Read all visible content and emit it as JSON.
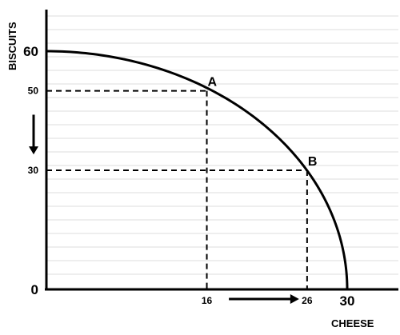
{
  "chart_data": {
    "type": "line",
    "xlabel": "CHEESE",
    "ylabel": "BISCUITS",
    "xlim": [
      0,
      30
    ],
    "ylim": [
      0,
      60
    ],
    "grid": true,
    "series": [
      {
        "x": [
          0,
          5,
          10,
          16,
          20,
          26,
          28,
          30
        ],
        "y": [
          60,
          58.8,
          55,
          50,
          43.6,
          30,
          21.5,
          0
        ]
      }
    ],
    "points": [
      {
        "label": "A",
        "x": 16,
        "y": 50
      },
      {
        "label": "B",
        "x": 26,
        "y": 30
      }
    ],
    "x_ticks": [
      {
        "value": 16,
        "label": "16",
        "big": false
      },
      {
        "value": 26,
        "label": "26",
        "big": false
      },
      {
        "value": 30,
        "label": "30",
        "big": true
      }
    ],
    "y_ticks": [
      {
        "value": 0,
        "label": "0",
        "big": true
      },
      {
        "value": 30,
        "label": "30",
        "big": false
      },
      {
        "value": 50,
        "label": "50",
        "big": false
      },
      {
        "value": 60,
        "label": "60",
        "big": true
      }
    ],
    "arrows": [
      {
        "direction": "down",
        "axis": "y",
        "from": 44,
        "to": 34
      },
      {
        "direction": "right",
        "axis": "x",
        "from": 18.2,
        "to": 25.2
      }
    ]
  }
}
